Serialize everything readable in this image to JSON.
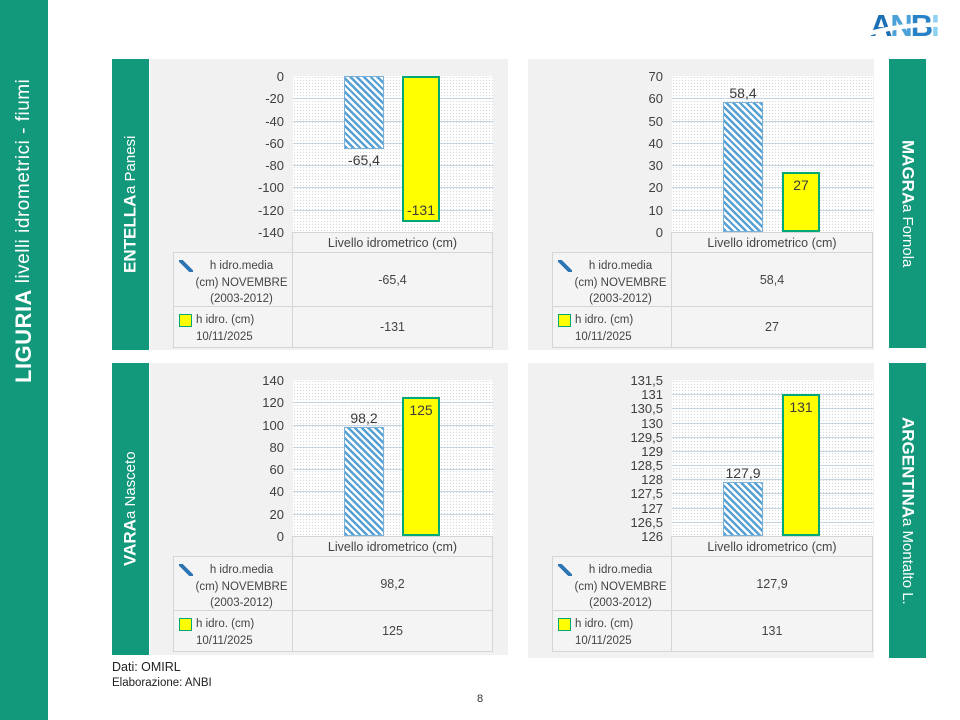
{
  "slide": {
    "sidebar_title_bold": "LIGURIA",
    "sidebar_title_rest": " livelli idrometrici - fiumi",
    "page_number": "8",
    "source_line1": "Dati: OMIRL",
    "source_line2": "Elaborazione: ANBI",
    "logo": {
      "letters": [
        "A",
        "N",
        "B",
        "I"
      ]
    }
  },
  "colors": {
    "teal": "#12987A",
    "panel_bg": "#F1F1F1",
    "cell_bg": "#F4F4F4",
    "table_border": "#D5D5D5",
    "grid": "#C5D3E2",
    "hatch_blue": "#57A0D3",
    "bar_yellow": "#FFFF00",
    "bar_yellow_border": "#00A878",
    "text": "#3F3F3F",
    "logo_blues": [
      "#1B6FB5",
      "#4BA2D9",
      "#2A82C6",
      "#8FD1F0"
    ]
  },
  "legend": {
    "rows": [
      {
        "swatch": "hatched-blue",
        "lines": [
          "h idro.media",
          "(cm) NOVEMBRE",
          "(2003-2012)"
        ]
      },
      {
        "swatch": "yellow",
        "lines": [
          "h idro. (cm)",
          "10/11/2025"
        ]
      }
    ]
  },
  "chart_data": [
    {
      "type": "bar",
      "title": "ENTELLA a Panesi",
      "river": "ENTELLA",
      "location": " a Panesi",
      "categories": [
        "Livello idrometrico (cm)"
      ],
      "series": [
        {
          "name": "h idro.media (cm) NOVEMBRE (2003-2012)",
          "values": [
            -65.4
          ],
          "label": "-65,4"
        },
        {
          "name": "h idro. (cm) 10/11/2025",
          "values": [
            -131
          ],
          "label": "-131"
        }
      ],
      "ylim": [
        -140,
        0
      ],
      "yticks": [
        "0",
        "-20",
        "-40",
        "-60",
        "-80",
        "-100",
        "-120",
        "-140"
      ],
      "baseline": 0,
      "grid": true,
      "legend_position": "table-below-left"
    },
    {
      "type": "bar",
      "title": "MAGRA a Fornola",
      "river": "MAGRA",
      "location": " a Fornola",
      "categories": [
        "Livello idrometrico (cm)"
      ],
      "series": [
        {
          "name": "h idro.media (cm) NOVEMBRE (2003-2012)",
          "values": [
            58.4
          ],
          "label": "58,4"
        },
        {
          "name": "h idro. (cm) 10/11/2025",
          "values": [
            27
          ],
          "label": "27"
        }
      ],
      "ylim": [
        0,
        70
      ],
      "yticks": [
        "70",
        "60",
        "50",
        "40",
        "30",
        "20",
        "10",
        "0"
      ],
      "baseline": 0,
      "grid": true,
      "legend_position": "table-below-left"
    },
    {
      "type": "bar",
      "title": "VARA a Nasceto",
      "river": "VARA",
      "location": " a Nasceto",
      "categories": [
        "Livello idrometrico (cm)"
      ],
      "series": [
        {
          "name": "h idro.media (cm) NOVEMBRE (2003-2012)",
          "values": [
            98.2
          ],
          "label": "98,2"
        },
        {
          "name": "h idro. (cm) 10/11/2025",
          "values": [
            125
          ],
          "label": "125"
        }
      ],
      "ylim": [
        0,
        140
      ],
      "yticks": [
        "140",
        "120",
        "100",
        "80",
        "60",
        "40",
        "20",
        "0"
      ],
      "baseline": 0,
      "grid": true,
      "legend_position": "table-below-left"
    },
    {
      "type": "bar",
      "title": "ARGENTINA a Montalto L.",
      "river": "ARGENTINA",
      "location": " a Montalto L.",
      "categories": [
        "Livello idrometrico (cm)"
      ],
      "series": [
        {
          "name": "h idro.media (cm) NOVEMBRE (2003-2012)",
          "values": [
            127.9
          ],
          "label": "127,9"
        },
        {
          "name": "h idro. (cm) 10/11/2025",
          "values": [
            131
          ],
          "label": "131"
        }
      ],
      "ylim": [
        126,
        131.5
      ],
      "yticks": [
        "131,5",
        "131",
        "130,5",
        "130",
        "129,5",
        "129",
        "128,5",
        "128",
        "127,5",
        "127",
        "126,5",
        "126"
      ],
      "baseline": 126,
      "grid": true,
      "legend_position": "table-below-left"
    }
  ]
}
